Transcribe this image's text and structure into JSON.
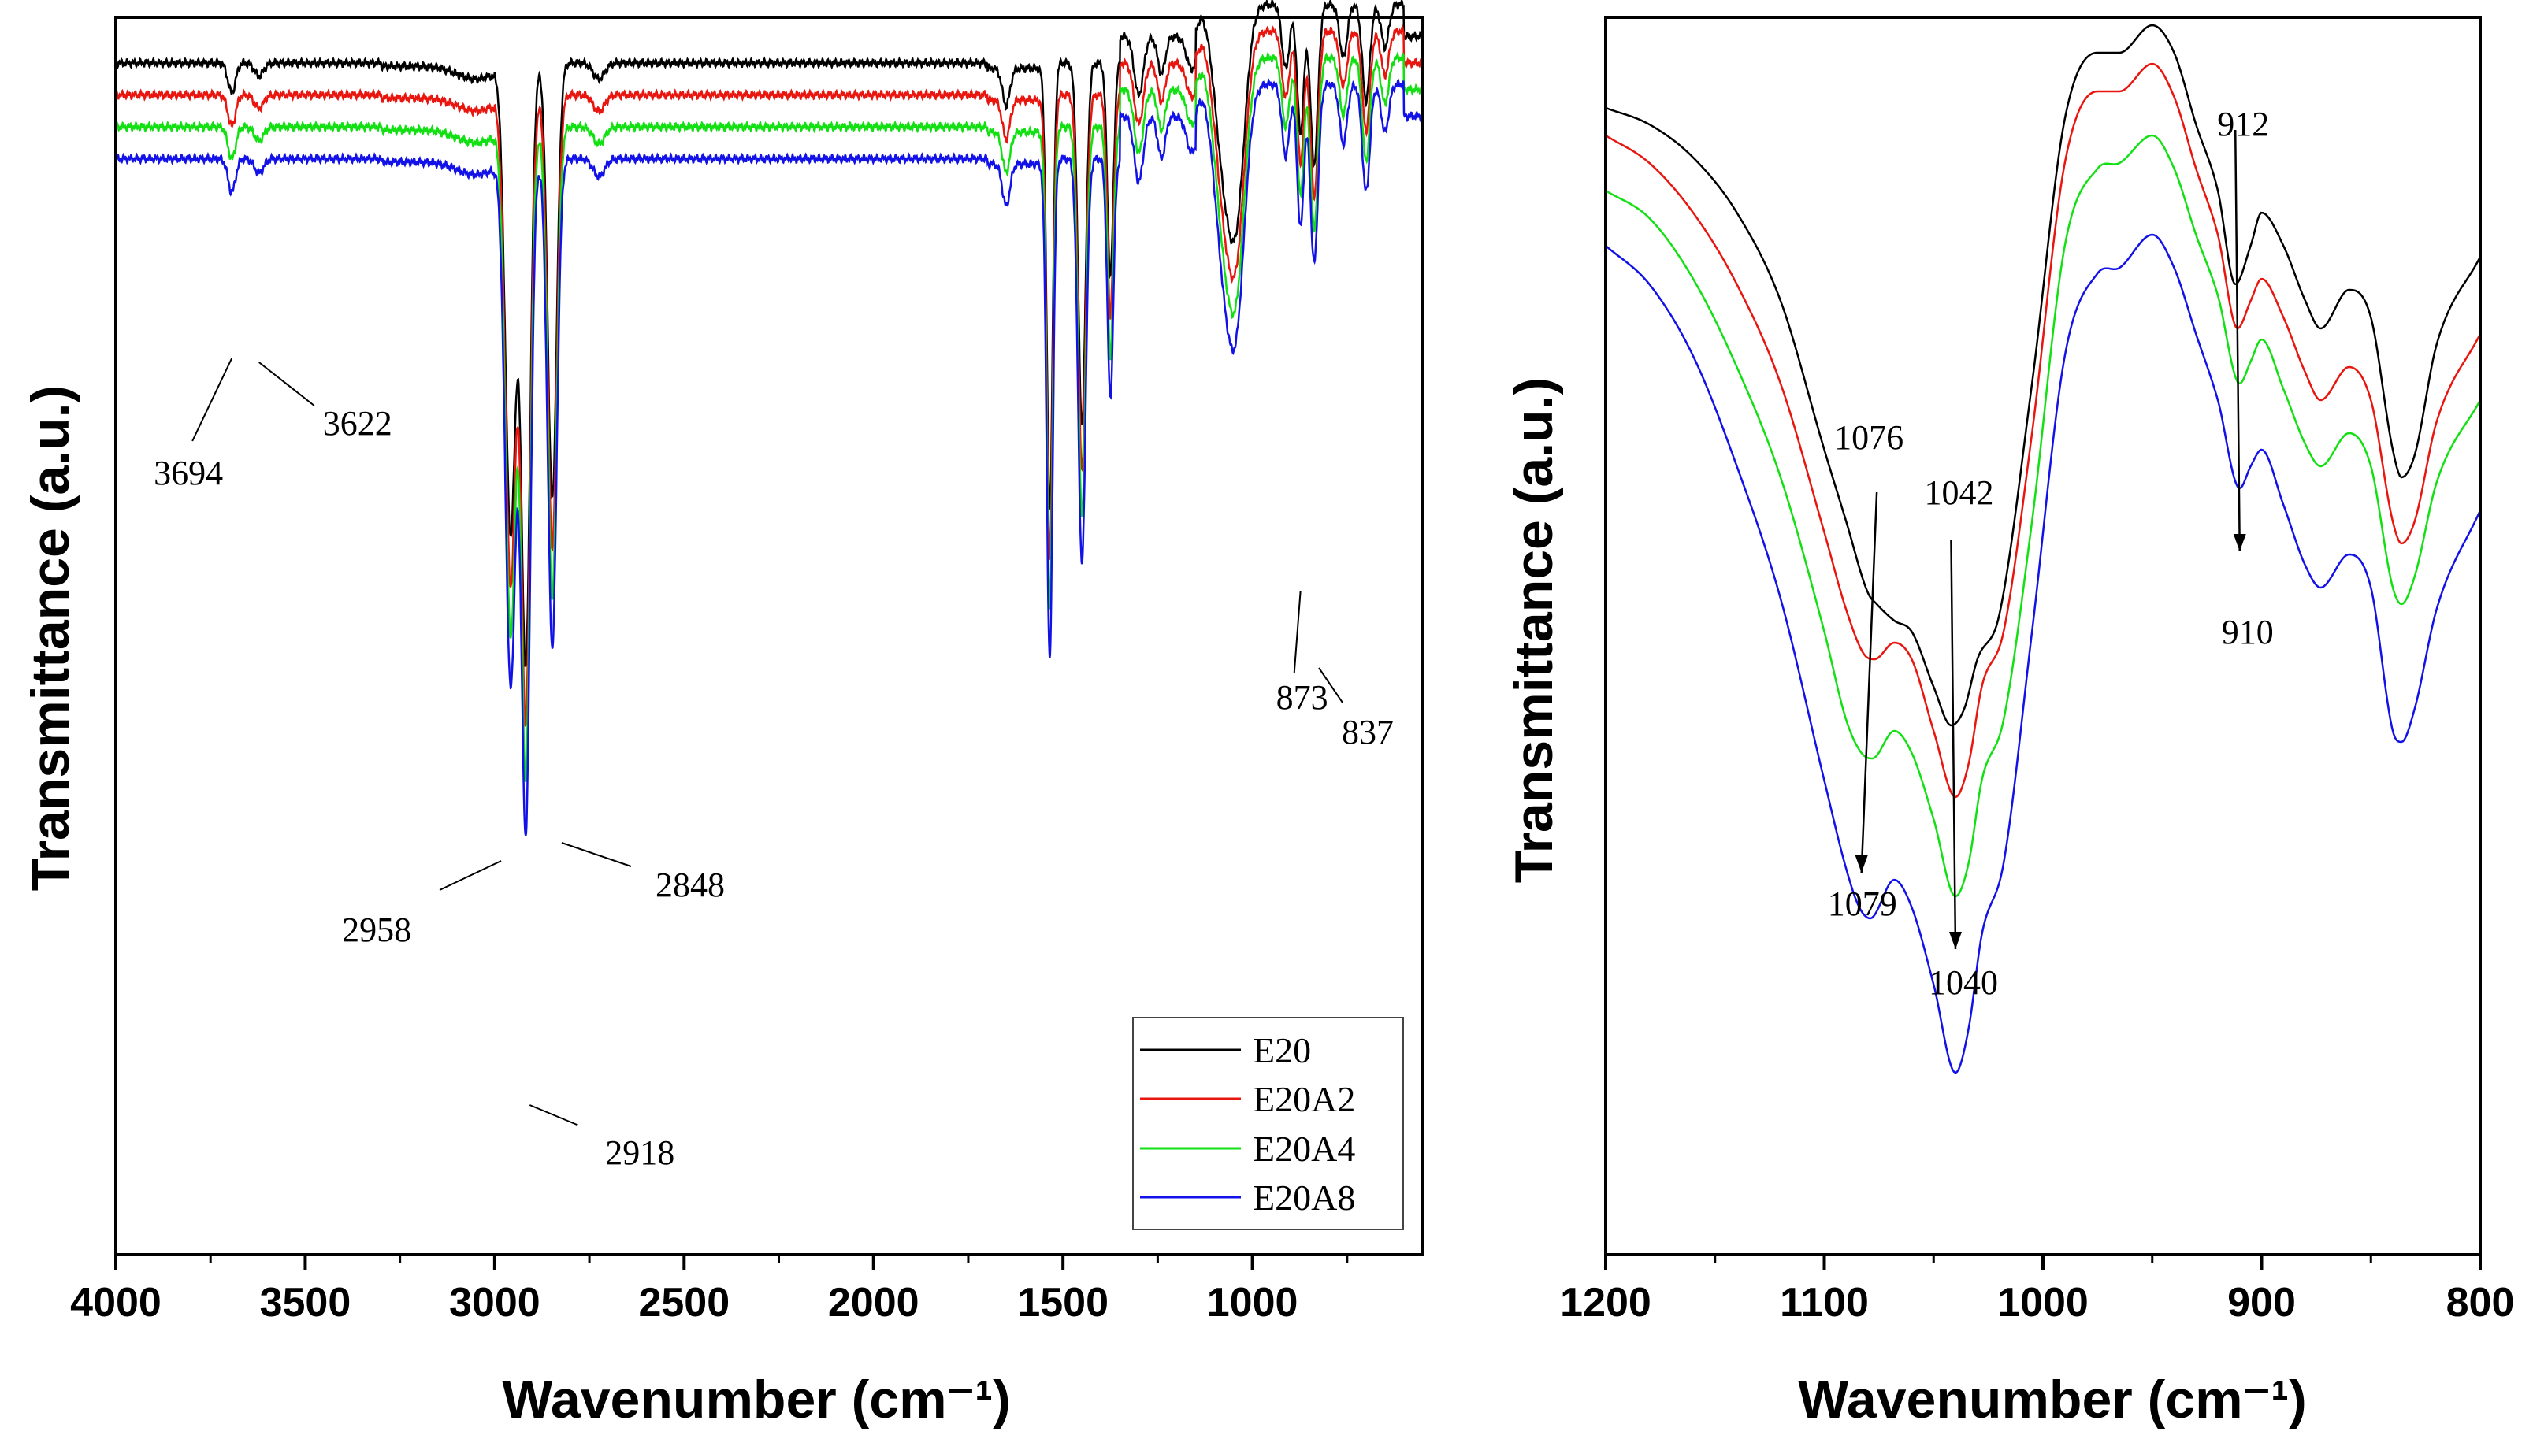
{
  "colors": {
    "E20": "#000000",
    "E20A2": "#e8160f",
    "E20A4": "#12e012",
    "E20A8": "#1212e8"
  },
  "chart_data": [
    {
      "id": "left",
      "type": "line",
      "title": "",
      "xlabel": "Wavenumber (cm⁻¹)",
      "ylabel": "Transmittance (a.u.)",
      "xlim": [
        4000,
        550
      ],
      "xticks": [
        4000,
        3500,
        3000,
        2500,
        2000,
        1500,
        1000
      ],
      "xtick_labels": [
        "4000",
        "3500",
        "3000",
        "2500",
        "2000",
        "1500",
        "1000"
      ],
      "grid": false,
      "legend_position": "bottom-right",
      "legend": [
        "E20",
        "E20A2",
        "E20A4",
        "E20A8"
      ],
      "baselines": [
        0.0,
        0.3,
        0.6,
        0.9
      ],
      "peaks": [
        {
          "x": 3694,
          "depth": 0.28,
          "width": 10
        },
        {
          "x": 3622,
          "depth": 0.12,
          "width": 12
        },
        {
          "x": 2958,
          "depth": 4.4,
          "width": 14
        },
        {
          "x": 2918,
          "depth": 5.6,
          "width": 12
        },
        {
          "x": 2848,
          "depth": 4.1,
          "width": 12
        },
        {
          "x": 2725,
          "depth": 0.15,
          "width": 15
        },
        {
          "x": 1650,
          "depth": 0.35,
          "width": 10
        },
        {
          "x": 1535,
          "depth": 4.2,
          "width": 8
        },
        {
          "x": 1450,
          "depth": 3.4,
          "width": 10
        },
        {
          "x": 1375,
          "depth": 2.0,
          "width": 8
        },
        {
          "x": 1300,
          "depth": 0.55,
          "width": 12
        },
        {
          "x": 1240,
          "depth": 0.35,
          "width": 10
        },
        {
          "x": 1160,
          "depth": 0.3,
          "width": 14
        },
        {
          "x": 1076,
          "depth": 1.35,
          "width": 25
        },
        {
          "x": 1040,
          "depth": 1.6,
          "width": 22
        },
        {
          "x": 912,
          "depth": 0.6,
          "width": 10
        },
        {
          "x": 873,
          "depth": 1.2,
          "width": 9
        },
        {
          "x": 837,
          "depth": 1.5,
          "width": 10
        },
        {
          "x": 760,
          "depth": 0.5,
          "width": 10
        },
        {
          "x": 700,
          "depth": 0.9,
          "width": 10
        },
        {
          "x": 650,
          "depth": 0.4,
          "width": 10
        }
      ],
      "annotations": [
        {
          "text": "3694",
          "x": 3694
        },
        {
          "text": "3622",
          "x": 3622
        },
        {
          "text": "2958",
          "x": 2958
        },
        {
          "text": "2918",
          "x": 2918
        },
        {
          "text": "2848",
          "x": 2848
        },
        {
          "text": "873",
          "x": 873
        },
        {
          "text": "837",
          "x": 837
        }
      ]
    },
    {
      "id": "right",
      "type": "line",
      "title": "",
      "xlabel": "Wavenumber (cm⁻¹)",
      "ylabel": "Transmittance (a.u.)",
      "xlim": [
        1200,
        800
      ],
      "xticks": [
        1200,
        1100,
        1000,
        900,
        800
      ],
      "xtick_labels": [
        "1200",
        "1100",
        "1000",
        "900",
        "800"
      ],
      "grid": false,
      "legend": [
        "E20",
        "E20A2",
        "E20A4",
        "E20A8"
      ],
      "series": [
        {
          "name": "E20",
          "x": [
            1200,
            1180,
            1160,
            1140,
            1120,
            1100,
            1090,
            1080,
            1076,
            1068,
            1060,
            1050,
            1042,
            1036,
            1030,
            1020,
            1005,
            990,
            975,
            965,
            950,
            940,
            930,
            920,
            912,
            905,
            900,
            890,
            880,
            873,
            860,
            850,
            840,
            836,
            830,
            820,
            800
          ],
          "y": [
            0.95,
            0.92,
            0.86,
            0.76,
            0.6,
            0.33,
            0.2,
            0.07,
            0.05,
            0.02,
            0.0,
            -0.1,
            -0.17,
            -0.14,
            -0.05,
            0.03,
            0.45,
            0.93,
            1.05,
            1.05,
            1.1,
            1.05,
            0.92,
            0.8,
            0.63,
            0.7,
            0.76,
            0.7,
            0.6,
            0.55,
            0.62,
            0.57,
            0.33,
            0.28,
            0.32,
            0.52,
            0.68
          ]
        },
        {
          "name": "E20A2",
          "x": [
            1200,
            1180,
            1160,
            1140,
            1120,
            1100,
            1090,
            1082,
            1077,
            1068,
            1060,
            1050,
            1040,
            1034,
            1028,
            1018,
            1005,
            990,
            975,
            965,
            950,
            940,
            930,
            920,
            911,
            905,
            900,
            890,
            880,
            873,
            860,
            850,
            840,
            836,
            830,
            820,
            800
          ],
          "y": [
            0.9,
            0.85,
            0.76,
            0.63,
            0.45,
            0.18,
            0.04,
            -0.04,
            -0.05,
            -0.02,
            -0.05,
            -0.18,
            -0.3,
            -0.24,
            -0.1,
            0.0,
            0.36,
            0.85,
            0.98,
            0.98,
            1.03,
            0.97,
            0.84,
            0.72,
            0.55,
            0.6,
            0.64,
            0.57,
            0.47,
            0.42,
            0.48,
            0.42,
            0.2,
            0.16,
            0.2,
            0.38,
            0.54
          ]
        },
        {
          "name": "E20A4",
          "x": [
            1200,
            1180,
            1160,
            1140,
            1120,
            1100,
            1090,
            1083,
            1078,
            1068,
            1060,
            1050,
            1040,
            1034,
            1028,
            1018,
            1005,
            990,
            975,
            965,
            950,
            940,
            930,
            920,
            910,
            905,
            900,
            890,
            880,
            873,
            860,
            850,
            840,
            836,
            830,
            820,
            800
          ],
          "y": [
            0.8,
            0.75,
            0.64,
            0.48,
            0.28,
            0.0,
            -0.16,
            -0.22,
            -0.23,
            -0.18,
            -0.22,
            -0.34,
            -0.48,
            -0.42,
            -0.27,
            -0.16,
            0.2,
            0.7,
            0.84,
            0.85,
            0.9,
            0.84,
            0.72,
            0.61,
            0.45,
            0.49,
            0.53,
            0.44,
            0.34,
            0.3,
            0.36,
            0.3,
            0.08,
            0.05,
            0.1,
            0.27,
            0.42
          ]
        },
        {
          "name": "E20A8",
          "x": [
            1200,
            1180,
            1160,
            1140,
            1120,
            1100,
            1090,
            1084,
            1079,
            1068,
            1060,
            1050,
            1040,
            1034,
            1028,
            1018,
            1005,
            990,
            975,
            965,
            950,
            940,
            930,
            920,
            910,
            905,
            900,
            890,
            880,
            873,
            860,
            850,
            840,
            836,
            830,
            820,
            800
          ],
          "y": [
            0.7,
            0.63,
            0.5,
            0.3,
            0.06,
            -0.27,
            -0.43,
            -0.5,
            -0.52,
            -0.45,
            -0.5,
            -0.64,
            -0.8,
            -0.72,
            -0.55,
            -0.42,
            0.0,
            0.5,
            0.65,
            0.66,
            0.72,
            0.66,
            0.54,
            0.42,
            0.26,
            0.3,
            0.33,
            0.23,
            0.12,
            0.08,
            0.14,
            0.08,
            -0.18,
            -0.2,
            -0.14,
            0.04,
            0.22
          ]
        }
      ],
      "annotations": [
        {
          "text": "1076",
          "x": 1076,
          "series": "E20"
        },
        {
          "text": "1042",
          "x": 1042,
          "series": "E20"
        },
        {
          "text": "912",
          "x": 912,
          "series": "E20"
        },
        {
          "text": "1079",
          "x": 1079,
          "series": "E20A8"
        },
        {
          "text": "1040",
          "x": 1040,
          "series": "E20A8"
        },
        {
          "text": "910",
          "x": 910,
          "series": "E20A8"
        }
      ]
    }
  ]
}
